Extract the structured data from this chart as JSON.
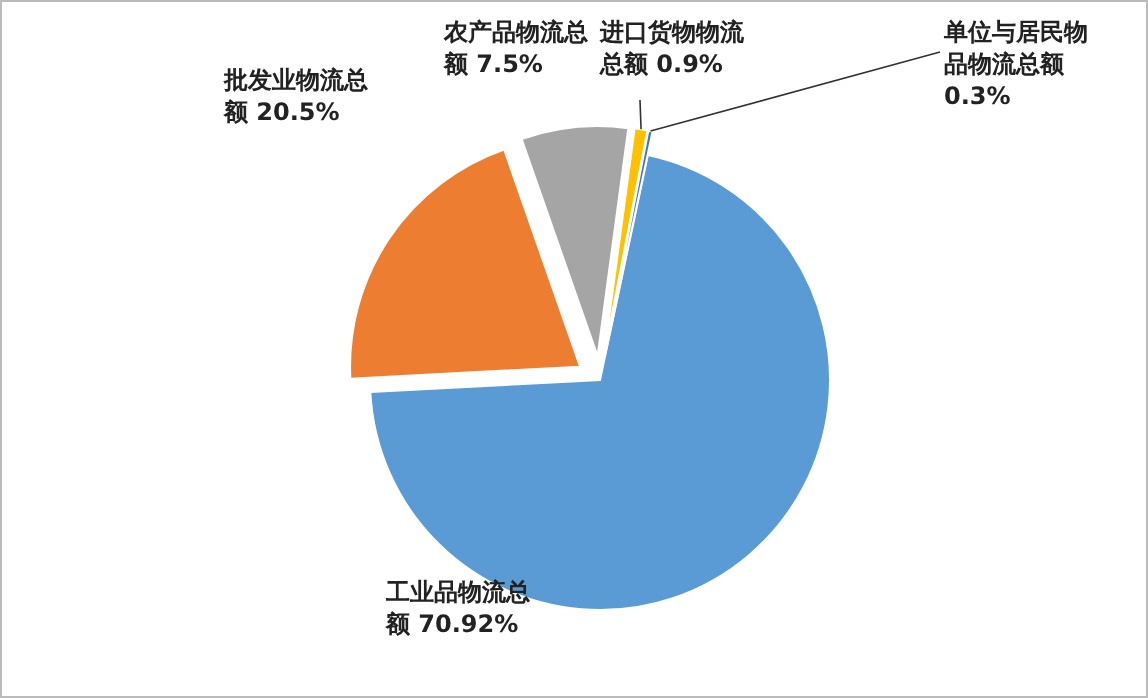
{
  "chart_data": {
    "type": "pie",
    "categories": [
      "工业品物流总额",
      "批发业物流总额",
      "农产品物流总额",
      "进口货物物流总额",
      "单位与居民物品物流总额"
    ],
    "values": [
      70.92,
      20.5,
      7.5,
      0.9,
      0.3
    ],
    "value_labels": [
      "70.92%",
      "20.5%",
      "7.5%",
      "0.9%",
      "0.3%"
    ],
    "colors": [
      "#5b9bd5",
      "#ed7d31",
      "#a5a5a5",
      "#ffc000",
      "#4472c4"
    ],
    "legend": false
  }
}
